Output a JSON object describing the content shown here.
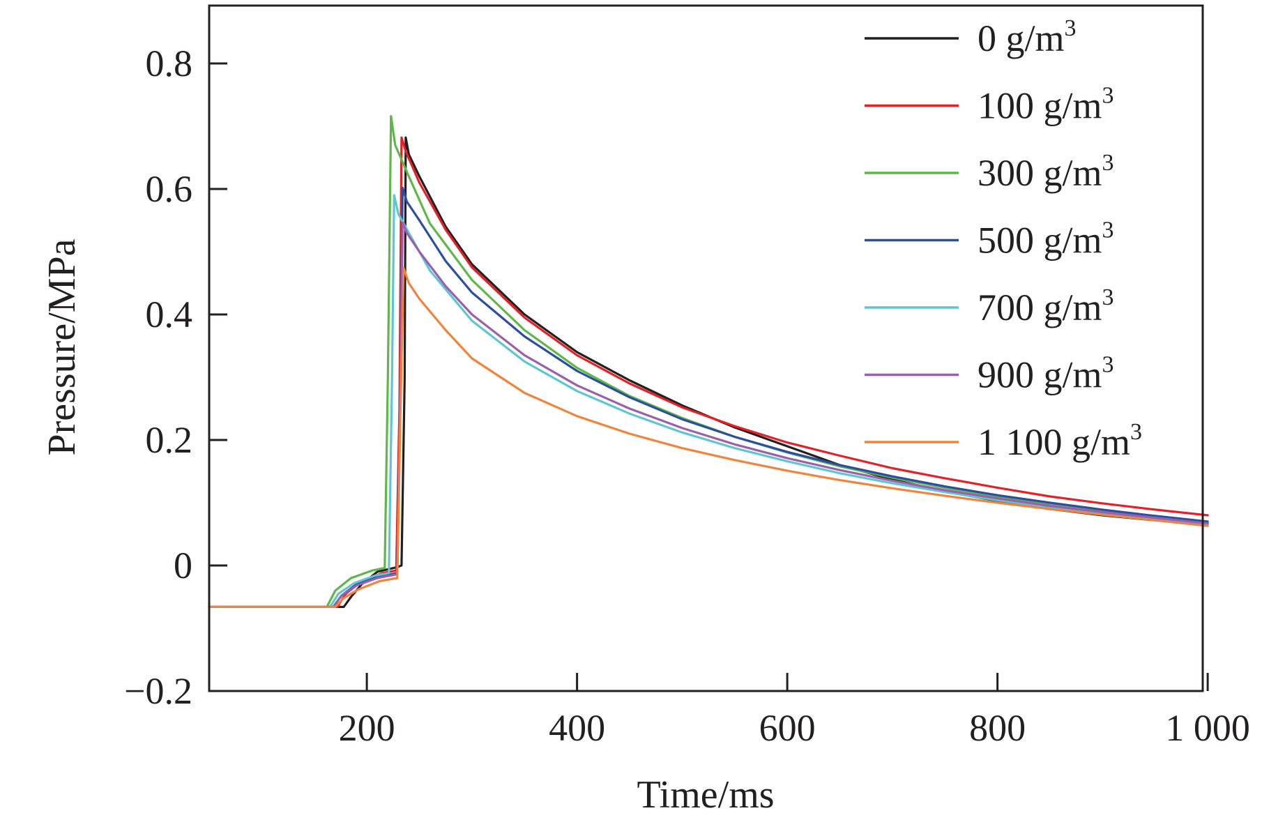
{
  "chart_data": {
    "type": "line",
    "title": "",
    "xlabel": "Time/ms",
    "ylabel": "Pressure/MPa",
    "xlim": [
      50,
      1000
    ],
    "ylim": [
      -0.2,
      0.9
    ],
    "x_ticks": [
      200,
      400,
      600,
      800,
      1000
    ],
    "x_tick_labels": [
      "200",
      "400",
      "600",
      "800",
      "1 000"
    ],
    "y_ticks": [
      -0.2,
      0,
      0.2,
      0.4,
      0.6,
      0.8
    ],
    "y_tick_labels": [
      "−0.2",
      "0",
      "0.2",
      "0.4",
      "0.6",
      "0.8"
    ],
    "grid": false,
    "legend_position": "top-right",
    "legend_unit_base": "g/m",
    "legend_unit_exponent": "3",
    "series": [
      {
        "name": "0 g/m3",
        "label_value": "0",
        "color": "#231f20",
        "points": [
          [
            50,
            -0.066
          ],
          [
            178,
            -0.066
          ],
          [
            185,
            -0.05
          ],
          [
            195,
            -0.03
          ],
          [
            210,
            -0.01
          ],
          [
            228,
            -0.003
          ],
          [
            233,
            0.0
          ],
          [
            236,
            0.3
          ],
          [
            237,
            0.682
          ],
          [
            240,
            0.655
          ],
          [
            250,
            0.62
          ],
          [
            275,
            0.54
          ],
          [
            300,
            0.48
          ],
          [
            350,
            0.4
          ],
          [
            400,
            0.34
          ],
          [
            450,
            0.295
          ],
          [
            500,
            0.255
          ],
          [
            550,
            0.22
          ],
          [
            600,
            0.19
          ],
          [
            650,
            0.16
          ],
          [
            700,
            0.137
          ],
          [
            750,
            0.118
          ],
          [
            800,
            0.103
          ],
          [
            850,
            0.09
          ],
          [
            900,
            0.08
          ],
          [
            950,
            0.072
          ],
          [
            1000,
            0.066
          ]
        ]
      },
      {
        "name": "100 g/m3",
        "label_value": "100",
        "color": "#e32227",
        "points": [
          [
            50,
            -0.066
          ],
          [
            172,
            -0.066
          ],
          [
            180,
            -0.045
          ],
          [
            195,
            -0.025
          ],
          [
            215,
            -0.012
          ],
          [
            228,
            -0.008
          ],
          [
            231,
            0.25
          ],
          [
            233,
            0.682
          ],
          [
            237,
            0.66
          ],
          [
            250,
            0.61
          ],
          [
            275,
            0.535
          ],
          [
            300,
            0.475
          ],
          [
            350,
            0.395
          ],
          [
            400,
            0.335
          ],
          [
            450,
            0.29
          ],
          [
            500,
            0.252
          ],
          [
            550,
            0.222
          ],
          [
            600,
            0.196
          ],
          [
            650,
            0.175
          ],
          [
            700,
            0.155
          ],
          [
            750,
            0.139
          ],
          [
            800,
            0.124
          ],
          [
            850,
            0.11
          ],
          [
            900,
            0.099
          ],
          [
            950,
            0.089
          ],
          [
            1000,
            0.08
          ]
        ]
      },
      {
        "name": "300 g/m3",
        "label_value": "300",
        "color": "#5db848",
        "points": [
          [
            50,
            -0.066
          ],
          [
            162,
            -0.066
          ],
          [
            170,
            -0.04
          ],
          [
            185,
            -0.02
          ],
          [
            205,
            -0.008
          ],
          [
            217,
            -0.004
          ],
          [
            220,
            0.3
          ],
          [
            223,
            0.716
          ],
          [
            227,
            0.67
          ],
          [
            240,
            0.62
          ],
          [
            260,
            0.545
          ],
          [
            300,
            0.455
          ],
          [
            350,
            0.375
          ],
          [
            400,
            0.315
          ],
          [
            450,
            0.27
          ],
          [
            500,
            0.235
          ],
          [
            550,
            0.205
          ],
          [
            600,
            0.18
          ],
          [
            650,
            0.158
          ],
          [
            700,
            0.14
          ],
          [
            750,
            0.124
          ],
          [
            800,
            0.11
          ],
          [
            850,
            0.098
          ],
          [
            900,
            0.087
          ],
          [
            950,
            0.077
          ],
          [
            1000,
            0.068
          ]
        ]
      },
      {
        "name": "500 g/m3",
        "label_value": "500",
        "color": "#2b4ea1",
        "points": [
          [
            50,
            -0.066
          ],
          [
            168,
            -0.066
          ],
          [
            176,
            -0.048
          ],
          [
            190,
            -0.03
          ],
          [
            210,
            -0.018
          ],
          [
            229,
            -0.012
          ],
          [
            232,
            0.3
          ],
          [
            234,
            0.602
          ],
          [
            238,
            0.58
          ],
          [
            250,
            0.55
          ],
          [
            275,
            0.485
          ],
          [
            300,
            0.435
          ],
          [
            350,
            0.365
          ],
          [
            400,
            0.31
          ],
          [
            450,
            0.268
          ],
          [
            500,
            0.233
          ],
          [
            550,
            0.205
          ],
          [
            600,
            0.181
          ],
          [
            650,
            0.16
          ],
          [
            700,
            0.142
          ],
          [
            750,
            0.126
          ],
          [
            800,
            0.112
          ],
          [
            850,
            0.1
          ],
          [
            900,
            0.089
          ],
          [
            950,
            0.079
          ],
          [
            1000,
            0.07
          ]
        ]
      },
      {
        "name": "700 g/m3",
        "label_value": "700",
        "color": "#5dc6d1",
        "points": [
          [
            50,
            -0.066
          ],
          [
            165,
            -0.066
          ],
          [
            173,
            -0.045
          ],
          [
            188,
            -0.028
          ],
          [
            208,
            -0.016
          ],
          [
            221,
            -0.012
          ],
          [
            224,
            0.3
          ],
          [
            226,
            0.59
          ],
          [
            230,
            0.56
          ],
          [
            240,
            0.53
          ],
          [
            260,
            0.47
          ],
          [
            300,
            0.39
          ],
          [
            350,
            0.325
          ],
          [
            400,
            0.278
          ],
          [
            450,
            0.242
          ],
          [
            500,
            0.212
          ],
          [
            550,
            0.187
          ],
          [
            600,
            0.166
          ],
          [
            650,
            0.147
          ],
          [
            700,
            0.131
          ],
          [
            750,
            0.117
          ],
          [
            800,
            0.104
          ],
          [
            850,
            0.093
          ],
          [
            900,
            0.083
          ],
          [
            950,
            0.074
          ],
          [
            1000,
            0.065
          ]
        ]
      },
      {
        "name": "900 g/m3",
        "label_value": "900",
        "color": "#9a5fae",
        "points": [
          [
            50,
            -0.066
          ],
          [
            168,
            -0.066
          ],
          [
            176,
            -0.048
          ],
          [
            190,
            -0.032
          ],
          [
            210,
            -0.02
          ],
          [
            229,
            -0.014
          ],
          [
            232,
            0.3
          ],
          [
            234,
            0.546
          ],
          [
            238,
            0.53
          ],
          [
            250,
            0.5
          ],
          [
            275,
            0.445
          ],
          [
            300,
            0.4
          ],
          [
            350,
            0.335
          ],
          [
            400,
            0.287
          ],
          [
            450,
            0.25
          ],
          [
            500,
            0.219
          ],
          [
            550,
            0.193
          ],
          [
            600,
            0.171
          ],
          [
            650,
            0.152
          ],
          [
            700,
            0.135
          ],
          [
            750,
            0.12
          ],
          [
            800,
            0.107
          ],
          [
            850,
            0.095
          ],
          [
            900,
            0.085
          ],
          [
            950,
            0.076
          ],
          [
            1000,
            0.067
          ]
        ]
      },
      {
        "name": "1 100 g/m3",
        "label_value": "1 100",
        "color": "#f0843a",
        "points": [
          [
            50,
            -0.066
          ],
          [
            170,
            -0.066
          ],
          [
            178,
            -0.052
          ],
          [
            192,
            -0.038
          ],
          [
            212,
            -0.025
          ],
          [
            229,
            -0.02
          ],
          [
            232,
            0.25
          ],
          [
            235,
            0.474
          ],
          [
            240,
            0.45
          ],
          [
            250,
            0.425
          ],
          [
            275,
            0.375
          ],
          [
            300,
            0.33
          ],
          [
            350,
            0.275
          ],
          [
            400,
            0.238
          ],
          [
            450,
            0.21
          ],
          [
            500,
            0.187
          ],
          [
            550,
            0.168
          ],
          [
            600,
            0.151
          ],
          [
            650,
            0.136
          ],
          [
            700,
            0.123
          ],
          [
            750,
            0.111
          ],
          [
            800,
            0.1
          ],
          [
            850,
            0.09
          ],
          [
            900,
            0.081
          ],
          [
            950,
            0.072
          ],
          [
            1000,
            0.063
          ]
        ]
      }
    ]
  }
}
